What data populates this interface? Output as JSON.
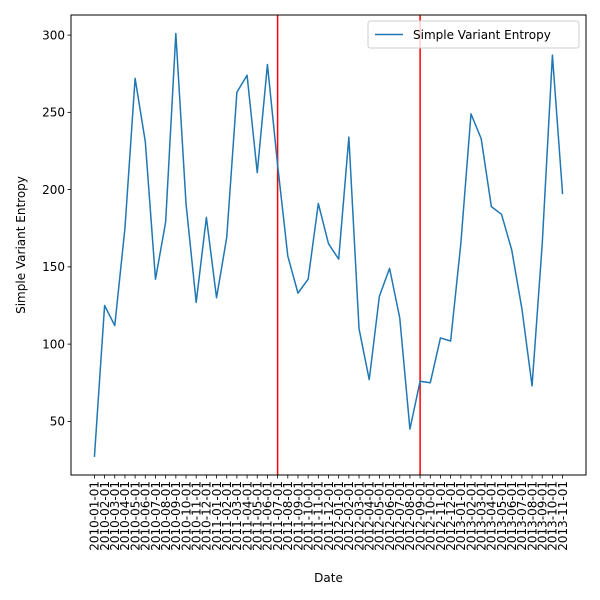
{
  "chart_data": {
    "type": "line",
    "xlabel": "Date",
    "ylabel": "Simple Variant Entropy",
    "x": [
      "2010-01-01",
      "2010-02-01",
      "2010-03-01",
      "2010-04-01",
      "2010-05-01",
      "2010-06-01",
      "2010-07-01",
      "2010-08-01",
      "2010-09-01",
      "2010-10-01",
      "2010-11-01",
      "2010-12-01",
      "2011-01-01",
      "2011-02-01",
      "2011-03-01",
      "2011-04-01",
      "2011-05-01",
      "2011-06-01",
      "2011-07-01",
      "2011-08-01",
      "2011-09-01",
      "2011-10-01",
      "2011-11-01",
      "2011-12-01",
      "2012-01-01",
      "2012-02-01",
      "2012-03-01",
      "2012-04-01",
      "2012-05-01",
      "2012-06-01",
      "2012-07-01",
      "2012-08-01",
      "2012-09-01",
      "2012-10-01",
      "2012-11-01",
      "2012-12-01",
      "2013-01-01",
      "2013-02-01",
      "2013-03-01",
      "2013-04-01",
      "2013-05-01",
      "2013-06-01",
      "2013-07-01",
      "2013-08-01",
      "2013-09-01",
      "2013-10-01",
      "2013-11-01"
    ],
    "series": [
      {
        "name": "Simple Variant Entropy",
        "color": "#1f77b4",
        "values": [
          27,
          125,
          112,
          175,
          272,
          231,
          142,
          179,
          301,
          191,
          127,
          182,
          130,
          169,
          263,
          274,
          211,
          281,
          216,
          157,
          133,
          142,
          191,
          165,
          155,
          234,
          110,
          77,
          131,
          149,
          117,
          45,
          76,
          75,
          104,
          102,
          165,
          249,
          233,
          189,
          184,
          161,
          123,
          73,
          165,
          287,
          197
        ]
      }
    ],
    "ylim": [
      15.3,
      313
    ],
    "yticks": [
      50,
      100,
      150,
      200,
      250,
      300
    ],
    "vlines": [
      {
        "x": "2011-07-01",
        "color": "#ff0000"
      },
      {
        "x": "2012-09-01",
        "color": "#ff0000"
      }
    ],
    "legend": {
      "position": "top-right",
      "entries": [
        "Simple Variant Entropy"
      ]
    },
    "grid": false
  }
}
